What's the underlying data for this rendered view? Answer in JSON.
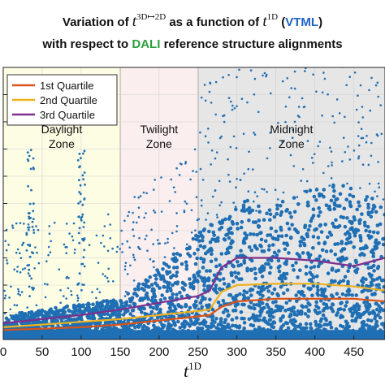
{
  "title": {
    "line1_prefix": "Variation of",
    "t_symbol": "t",
    "t_sup_3d": "3D↦2D",
    "line1_middle": "as a function of",
    "t_sup_1d": "1D",
    "vtml_open": "(",
    "vtml": "VTML",
    "vtml_close": ")",
    "line2_prefix": "with respect to",
    "dali": "DALI",
    "line2_suffix": "reference structure alignments"
  },
  "xlabel": {
    "symbol": "t",
    "sup": "1D"
  },
  "colors": {
    "scatter": "#1f6fb4",
    "q1": "#d95319",
    "q2": "#edb120",
    "q3": "#7e2f8e",
    "daylight_bg": "#fdfde4",
    "twilight_bg": "#fbeeee",
    "midnight_bg": "#e6e6e6"
  },
  "chart_data": {
    "type": "scatter",
    "xlim": [
      0,
      490
    ],
    "ylim": [
      0,
      1
    ],
    "x_ticks": [
      0,
      50,
      100,
      150,
      200,
      250,
      300,
      350,
      400,
      450
    ],
    "x_tick_labels": [
      "0",
      "50",
      "100",
      "150",
      "200",
      "250",
      "300",
      "350",
      "400",
      "450"
    ],
    "grid": true,
    "zones": [
      {
        "label_line1": "Daylight",
        "label_line2": "Zone",
        "x_range": [
          0,
          150
        ],
        "color": "#fdfde4"
      },
      {
        "label_line1": "Twilight",
        "label_line2": "Zone",
        "x_range": [
          150,
          250
        ],
        "color": "#fbeeee"
      },
      {
        "label_line1": "Midnight",
        "label_line2": "Zone",
        "x_range": [
          250,
          490
        ],
        "color": "#e6e6e6"
      }
    ],
    "legend_position": "top-left",
    "series": [
      {
        "name": "1st Quartile",
        "color": "#d95319",
        "x": [
          0,
          50,
          100,
          150,
          200,
          250,
          265,
          280,
          300,
          350,
          400,
          450,
          490
        ],
        "y": [
          0.035,
          0.04,
          0.045,
          0.055,
          0.07,
          0.085,
          0.09,
          0.12,
          0.14,
          0.15,
          0.15,
          0.15,
          0.14
        ]
      },
      {
        "name": "2nd Quartile",
        "color": "#edb120",
        "x": [
          0,
          50,
          100,
          150,
          200,
          250,
          265,
          280,
          300,
          350,
          400,
          450,
          490
        ],
        "y": [
          0.045,
          0.055,
          0.065,
          0.075,
          0.09,
          0.105,
          0.11,
          0.175,
          0.2,
          0.205,
          0.205,
          0.195,
          0.18
        ]
      },
      {
        "name": "3rd Quartile",
        "color": "#7e2f8e",
        "x": [
          0,
          50,
          100,
          150,
          200,
          250,
          265,
          280,
          300,
          350,
          400,
          450,
          490
        ],
        "y": [
          0.06,
          0.075,
          0.09,
          0.11,
          0.135,
          0.16,
          0.18,
          0.265,
          0.3,
          0.3,
          0.29,
          0.27,
          0.3
        ]
      }
    ]
  }
}
